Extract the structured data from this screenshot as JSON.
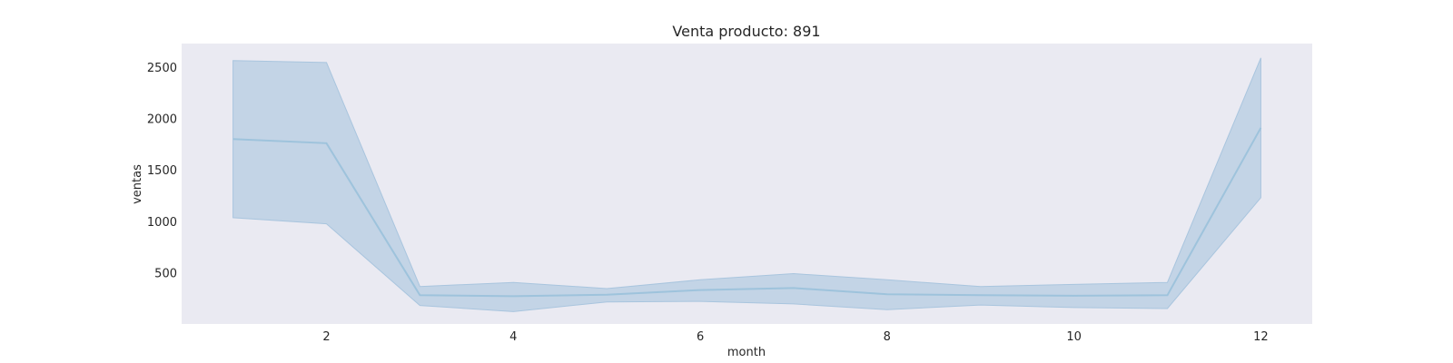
{
  "chart_data": {
    "type": "line",
    "title": "Venta producto: 891",
    "xlabel": "month",
    "ylabel": "ventas",
    "xlim": [
      0.45,
      12.55
    ],
    "ylim": [
      0,
      2730
    ],
    "xticks": [
      2,
      4,
      6,
      8,
      10,
      12
    ],
    "yticks": [
      500,
      1000,
      1500,
      2000,
      2500
    ],
    "grid": false,
    "background_color": "#eaeaf2",
    "line_color": "#9ec3dc",
    "band_color": "#a9c5de",
    "series": [
      {
        "x": [
          1,
          2,
          3,
          4,
          5,
          6,
          7,
          8,
          9,
          10,
          11,
          12
        ],
        "y": [
          1800,
          1760,
          280,
          270,
          285,
          330,
          350,
          290,
          280,
          275,
          280,
          1910
        ],
        "ci_upper": [
          2565,
          2545,
          365,
          405,
          345,
          430,
          490,
          430,
          365,
          385,
          405,
          2590
        ],
        "ci_lower": [
          1035,
          975,
          180,
          120,
          215,
          220,
          195,
          140,
          185,
          160,
          150,
          1230
        ]
      }
    ]
  }
}
